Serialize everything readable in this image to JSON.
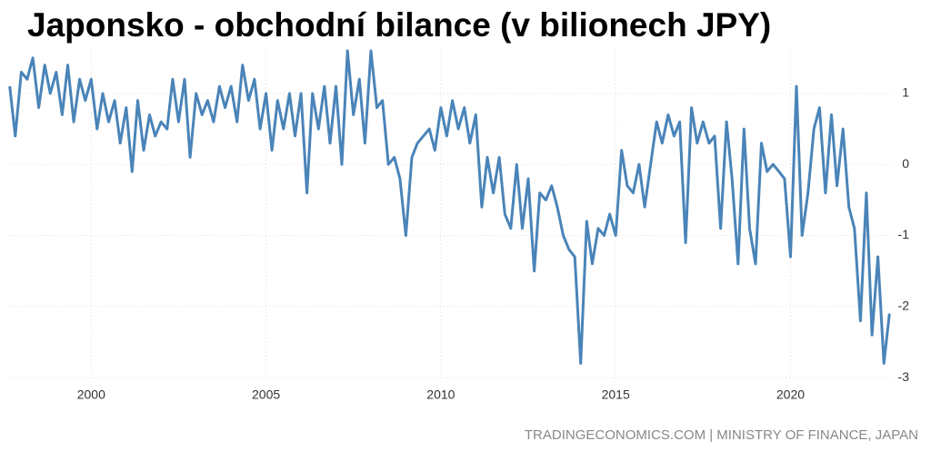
{
  "chart_data": {
    "type": "line",
    "title": "Japonsko - obchodní bilance (v bilionech JPY)",
    "source": "TRADINGECONOMICS.COM | MINISTRY OF FINANCE, JAPAN",
    "color": "#4a84b8",
    "grid": true,
    "xlim": [
      1997.6,
      2022.9
    ],
    "xticks": [
      2000,
      2005,
      2010,
      2015,
      2020
    ],
    "ylim": [
      -3.05,
      1.6
    ],
    "yticks": [
      1,
      0,
      -1,
      -2,
      -3
    ],
    "x": [
      1997.67,
      1997.83,
      1998,
      1998.17,
      1998.33,
      1998.5,
      1998.67,
      1998.83,
      1999,
      1999.17,
      1999.33,
      1999.5,
      1999.67,
      1999.83,
      2000,
      2000.17,
      2000.33,
      2000.5,
      2000.67,
      2000.83,
      2001,
      2001.17,
      2001.33,
      2001.5,
      2001.67,
      2001.83,
      2002,
      2002.17,
      2002.33,
      2002.5,
      2002.67,
      2002.83,
      2003,
      2003.17,
      2003.33,
      2003.5,
      2003.67,
      2003.83,
      2004,
      2004.17,
      2004.33,
      2004.5,
      2004.67,
      2004.83,
      2005,
      2005.17,
      2005.33,
      2005.5,
      2005.67,
      2005.83,
      2006,
      2006.17,
      2006.33,
      2006.5,
      2006.67,
      2006.83,
      2007,
      2007.17,
      2007.33,
      2007.5,
      2007.67,
      2007.83,
      2008,
      2008.17,
      2008.33,
      2008.5,
      2008.67,
      2008.83,
      2009,
      2009.17,
      2009.33,
      2009.5,
      2009.67,
      2009.83,
      2010,
      2010.17,
      2010.33,
      2010.5,
      2010.67,
      2010.83,
      2011,
      2011.17,
      2011.33,
      2011.5,
      2011.67,
      2011.83,
      2012,
      2012.17,
      2012.33,
      2012.5,
      2012.67,
      2012.83,
      2013,
      2013.17,
      2013.33,
      2013.5,
      2013.67,
      2013.83,
      2014,
      2014.17,
      2014.33,
      2014.5,
      2014.67,
      2014.83,
      2015,
      2015.17,
      2015.33,
      2015.5,
      2015.67,
      2015.83,
      2016,
      2016.17,
      2016.33,
      2016.5,
      2016.67,
      2016.83,
      2017,
      2017.17,
      2017.33,
      2017.5,
      2017.67,
      2017.83,
      2018,
      2018.17,
      2018.33,
      2018.5,
      2018.67,
      2018.83,
      2019,
      2019.17,
      2019.33,
      2019.5,
      2019.67,
      2019.83,
      2020,
      2020.17,
      2020.33,
      2020.5,
      2020.67,
      2020.83,
      2021,
      2021.17,
      2021.33,
      2021.5,
      2021.67,
      2021.83,
      2022,
      2022.17,
      2022.33,
      2022.5,
      2022.67,
      2022.83
    ],
    "values": [
      1.1,
      0.4,
      1.3,
      1.2,
      1.5,
      0.8,
      1.4,
      1.0,
      1.3,
      0.7,
      1.4,
      0.6,
      1.2,
      0.9,
      1.2,
      0.5,
      1.0,
      0.6,
      0.9,
      0.3,
      0.8,
      -0.1,
      0.9,
      0.2,
      0.7,
      0.4,
      0.6,
      0.5,
      1.2,
      0.6,
      1.2,
      0.1,
      1.0,
      0.7,
      0.9,
      0.6,
      1.1,
      0.8,
      1.1,
      0.6,
      1.4,
      0.9,
      1.2,
      0.5,
      1.0,
      0.2,
      0.9,
      0.5,
      1.0,
      0.4,
      1.0,
      -0.4,
      1.0,
      0.5,
      1.1,
      0.3,
      1.1,
      0.0,
      1.6,
      0.7,
      1.2,
      0.3,
      1.6,
      0.8,
      0.9,
      0.0,
      0.1,
      -0.2,
      -1.0,
      0.1,
      0.3,
      0.4,
      0.5,
      0.2,
      0.8,
      0.4,
      0.9,
      0.5,
      0.8,
      0.3,
      0.7,
      -0.6,
      0.1,
      -0.4,
      0.1,
      -0.7,
      -0.9,
      0.0,
      -0.9,
      -0.2,
      -1.5,
      -0.4,
      -0.5,
      -0.3,
      -0.6,
      -1.0,
      -1.2,
      -1.3,
      -2.8,
      -0.8,
      -1.4,
      -0.9,
      -1.0,
      -0.7,
      -1.0,
      0.2,
      -0.3,
      -0.4,
      0.0,
      -0.6,
      0.0,
      0.6,
      0.3,
      0.7,
      0.4,
      0.6,
      -1.1,
      0.8,
      0.3,
      0.6,
      0.3,
      0.4,
      -0.9,
      0.6,
      -0.2,
      -1.4,
      0.5,
      -0.9,
      -1.4,
      0.3,
      -0.1,
      0.0,
      -0.1,
      -0.2,
      -1.3,
      1.1,
      -1.0,
      -0.4,
      0.5,
      0.8,
      -0.4,
      0.7,
      -0.3,
      0.5,
      -0.6,
      -0.9,
      -2.2,
      -0.4,
      -2.4,
      -1.3,
      -2.8,
      -2.1
    ]
  }
}
